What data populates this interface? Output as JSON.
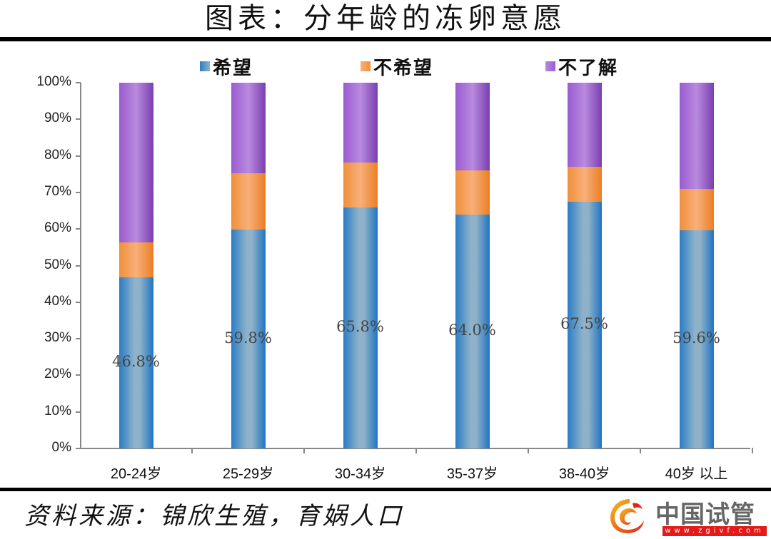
{
  "header": {
    "title": "图表：分年龄的冻卵意愿"
  },
  "footer": {
    "source": "资料来源：锦欣生殖，育娲人口"
  },
  "watermark": {
    "name": "中国试管",
    "url": "www.zgivf.com",
    "icon": "phoenix-logo-icon"
  },
  "colors": {
    "want": "#2a7dc6",
    "not_want": "#f18f3a",
    "unknown": "#9a5cd0"
  },
  "chart_data": {
    "type": "bar",
    "stacked": true,
    "title": "图表：分年龄的冻卵意愿",
    "xlabel": "",
    "ylabel": "",
    "ylim": [
      0,
      100
    ],
    "yticks": [
      "0%",
      "10%",
      "20%",
      "30%",
      "40%",
      "50%",
      "60%",
      "70%",
      "80%",
      "90%",
      "100%"
    ],
    "categories": [
      "20-24岁",
      "25-29岁",
      "30-34岁",
      "35-37岁",
      "38-40岁",
      "40岁 以上"
    ],
    "legend": [
      "希望",
      "不希望",
      "不了解"
    ],
    "legend_position": "top",
    "grid": false,
    "series": [
      {
        "name": "希望",
        "values": [
          46.8,
          59.8,
          65.8,
          64.0,
          67.5,
          59.6
        ],
        "labels": [
          "46.8%",
          "59.8%",
          "65.8%",
          "64.0%",
          "67.5%",
          "59.6%"
        ]
      },
      {
        "name": "不希望",
        "values": [
          9.5,
          15.4,
          12.3,
          12.0,
          9.5,
          11.3
        ]
      },
      {
        "name": "不了解",
        "values": [
          43.7,
          24.8,
          21.9,
          24.0,
          23.0,
          29.1
        ]
      }
    ]
  }
}
